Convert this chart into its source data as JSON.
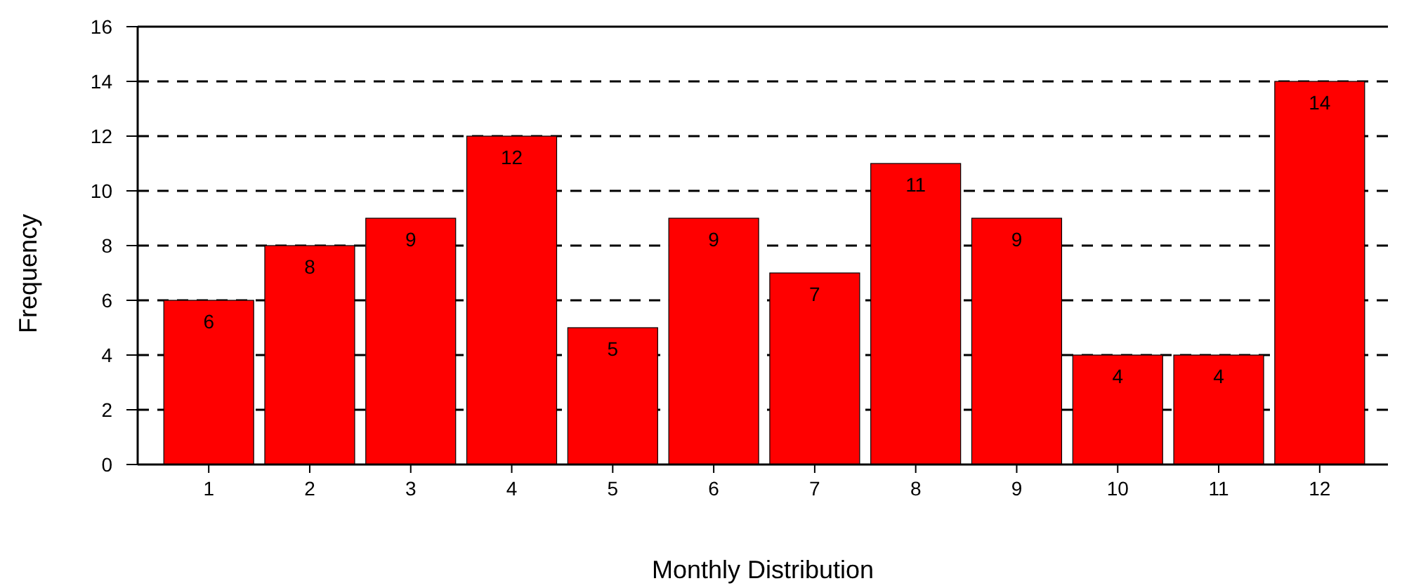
{
  "chart_data": {
    "type": "bar",
    "xlabel": "Monthly Distribution",
    "ylabel": "Frequency",
    "categories": [
      "1",
      "2",
      "3",
      "4",
      "5",
      "6",
      "7",
      "8",
      "9",
      "10",
      "11",
      "12"
    ],
    "values": [
      6,
      8,
      9,
      12,
      5,
      9,
      7,
      11,
      9,
      4,
      4,
      14
    ],
    "color": "#ff0000",
    "ylim": [
      0,
      16
    ],
    "yticks": [
      0,
      2,
      4,
      6,
      8,
      10,
      12,
      14,
      16
    ],
    "grid": "y",
    "data_labels": true
  }
}
